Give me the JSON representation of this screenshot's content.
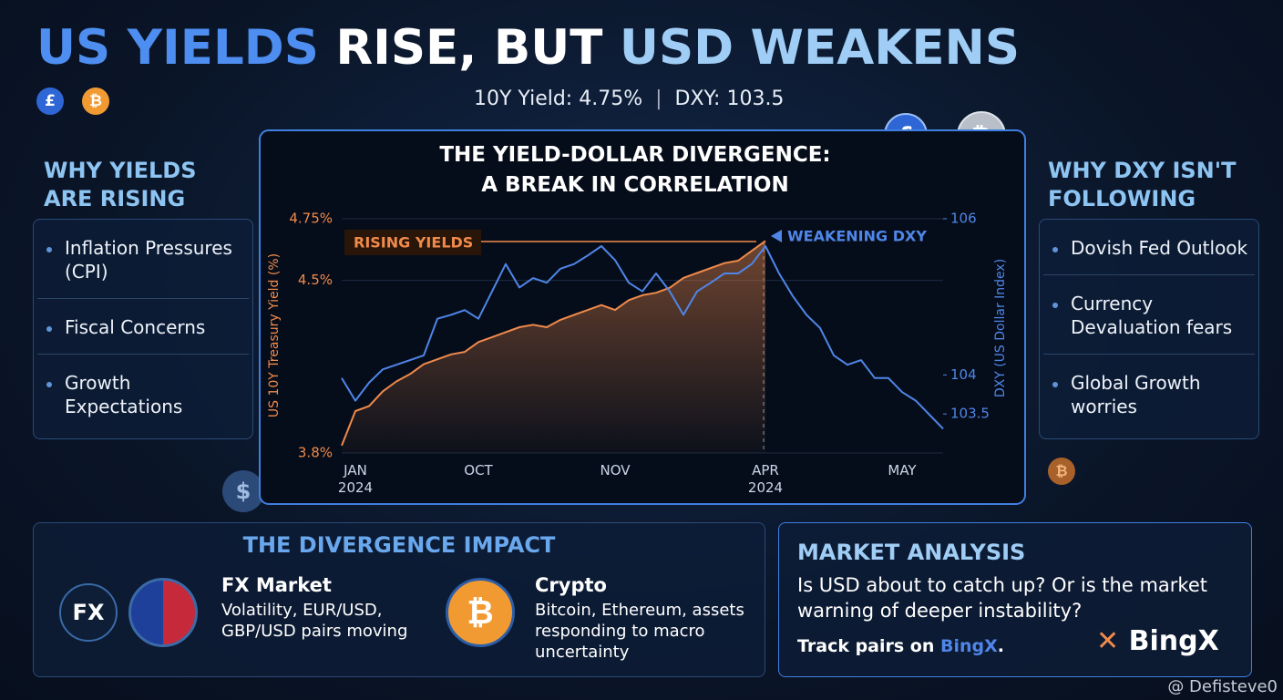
{
  "header": {
    "title_parts": [
      "US YIELDS",
      "RISE, BUT",
      "USD WEAKENS"
    ],
    "stats": [
      "10Y Yield: 4.75%",
      "DXY: 103.5"
    ]
  },
  "icons": {
    "pound": "£",
    "bitcoin": "₿",
    "dollar": "$",
    "fx": "FX"
  },
  "left_panel": {
    "heading": "WHY YIELDS ARE RISING",
    "items": [
      "Inflation Pressures (CPI)",
      "Fiscal Concerns",
      "Growth Expectations"
    ]
  },
  "right_panel": {
    "heading": "WHY DXY ISN'T FOLLOWING",
    "items": [
      "Dovish Fed Outlook",
      "Currency Devaluation fears",
      "Global Growth worries"
    ]
  },
  "chart_data": {
    "type": "line",
    "title": [
      "THE YIELD-DOLLAR DIVERGENCE:",
      "A BREAK IN CORRELATION"
    ],
    "y_label": "US 10Y Treasury Yield (%)",
    "y2_label": "DXY (US Dollar Index)",
    "annotations": [
      "RISING YIELDS",
      "WEAKENING DXY"
    ],
    "categories": [
      null,
      "JAN\n2024",
      null,
      null,
      null,
      null,
      null,
      null,
      null,
      null,
      "OCT",
      null,
      null,
      null,
      null,
      null,
      null,
      null,
      null,
      null,
      "NOV",
      null,
      null,
      null,
      null,
      null,
      null,
      null,
      null,
      null,
      null,
      "APR\n2024",
      null,
      null,
      null,
      null,
      null,
      null,
      null,
      null,
      null,
      "MAY",
      null,
      null,
      null
    ],
    "ylim": [
      3.8,
      4.75
    ],
    "yticks": [
      {
        "value": 4.75,
        "label": "4.75%"
      },
      {
        "value": 4.5,
        "label": "4.5%"
      },
      {
        "value": 3.8,
        "label": "3.8%"
      }
    ],
    "y2lim": [
      103,
      106
    ],
    "y2ticks": [
      106,
      104,
      103.5
    ],
    "grid": true,
    "series": [
      {
        "color": "#f08a4b",
        "values": [
          3.83,
          3.97,
          3.99,
          4.05,
          4.09,
          4.12,
          4.16,
          4.18,
          4.2,
          4.21,
          4.25,
          4.27,
          4.29,
          4.31,
          4.32,
          4.31,
          4.34,
          4.36,
          4.38,
          4.4,
          4.38,
          4.42,
          4.44,
          4.45,
          4.47,
          4.51,
          4.53,
          4.55,
          4.57,
          4.58,
          4.62,
          4.66,
          null,
          null,
          null,
          null,
          null,
          null,
          null,
          null,
          null,
          null,
          null,
          null,
          null
        ]
      },
      {
        "color": "#4f86e8",
        "axis": "y2",
        "values": [
          103.96,
          103.67,
          103.9,
          104.07,
          104.13,
          104.19,
          104.25,
          104.72,
          104.77,
          104.83,
          104.72,
          105.07,
          105.42,
          105.12,
          105.24,
          105.18,
          105.36,
          105.42,
          105.53,
          105.65,
          105.47,
          105.18,
          105.07,
          105.3,
          105.07,
          104.77,
          105.07,
          105.18,
          105.3,
          105.3,
          105.42,
          105.65,
          105.3,
          105.01,
          104.77,
          104.6,
          104.25,
          104.13,
          104.19,
          103.96,
          103.96,
          103.78,
          103.67,
          103.49,
          103.31
        ]
      }
    ]
  },
  "impact": {
    "title": "THE DIVERGENCE IMPACT",
    "items": [
      {
        "title": "FX Market",
        "text": "Volatility, EUR/USD, GBP/USD pairs moving"
      },
      {
        "title": "Crypto",
        "text": "Bitcoin, Ethereum, assets responding to macro uncertainty"
      }
    ]
  },
  "analysis": {
    "title": "MARKET ANALYSIS",
    "text": "Is USD about to catch up? Or is the market warning of deeper instability?",
    "cta": "Track pairs on ",
    "brand": "BingX",
    "end": ".",
    "logo": "BingX"
  },
  "watermark": "@ Defisteve0"
}
